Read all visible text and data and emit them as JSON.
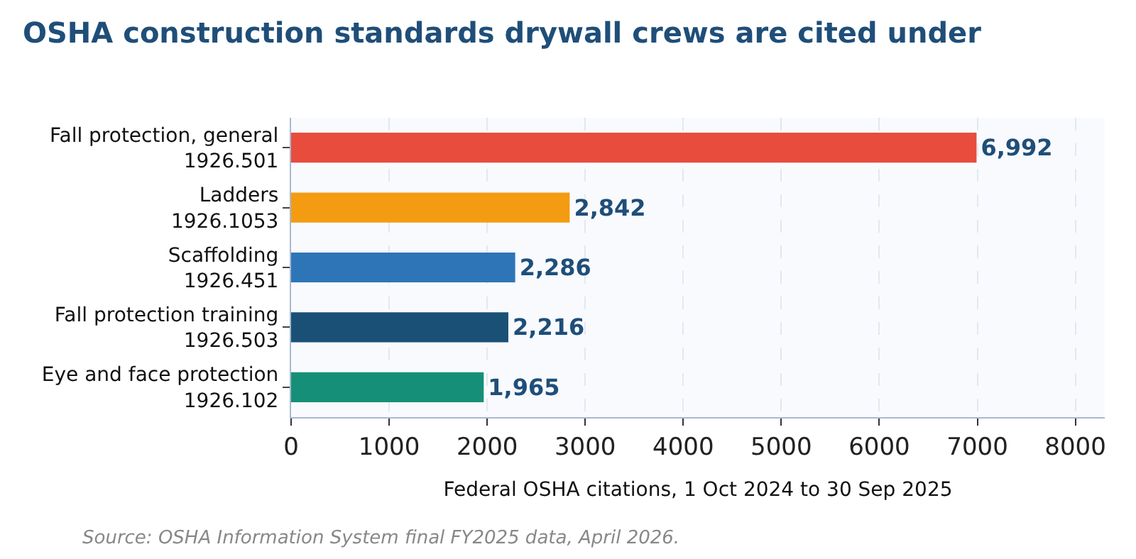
{
  "chart_data": {
    "type": "bar",
    "orientation": "horizontal",
    "title": "OSHA construction standards drywall crews are cited under",
    "xlabel": "Federal OSHA citations, 1 Oct 2024 to 30 Sep 2025",
    "categories": [
      "Fall protection, general\n1926.501",
      "Ladders\n1926.1053",
      "Scaffolding\n1926.451",
      "Fall protection training\n1926.503",
      "Eye and face protection\n1926.102"
    ],
    "values": [
      6992,
      2842,
      2286,
      2216,
      1965
    ],
    "colors": [
      "#e84c3d",
      "#f39c12",
      "#2e75b7",
      "#1a5076",
      "#168f78"
    ],
    "value_labels": [
      "6,992",
      "2,842",
      "2,286",
      "2,216",
      "1,965"
    ],
    "xlim": [
      0,
      8300
    ],
    "xticks": [
      0,
      1000,
      2000,
      3000,
      4000,
      5000,
      6000,
      7000,
      8000
    ],
    "grid": "x",
    "legend": false,
    "annotations": [
      "Source: OSHA Information System final FY2025 data, April 2026."
    ]
  }
}
